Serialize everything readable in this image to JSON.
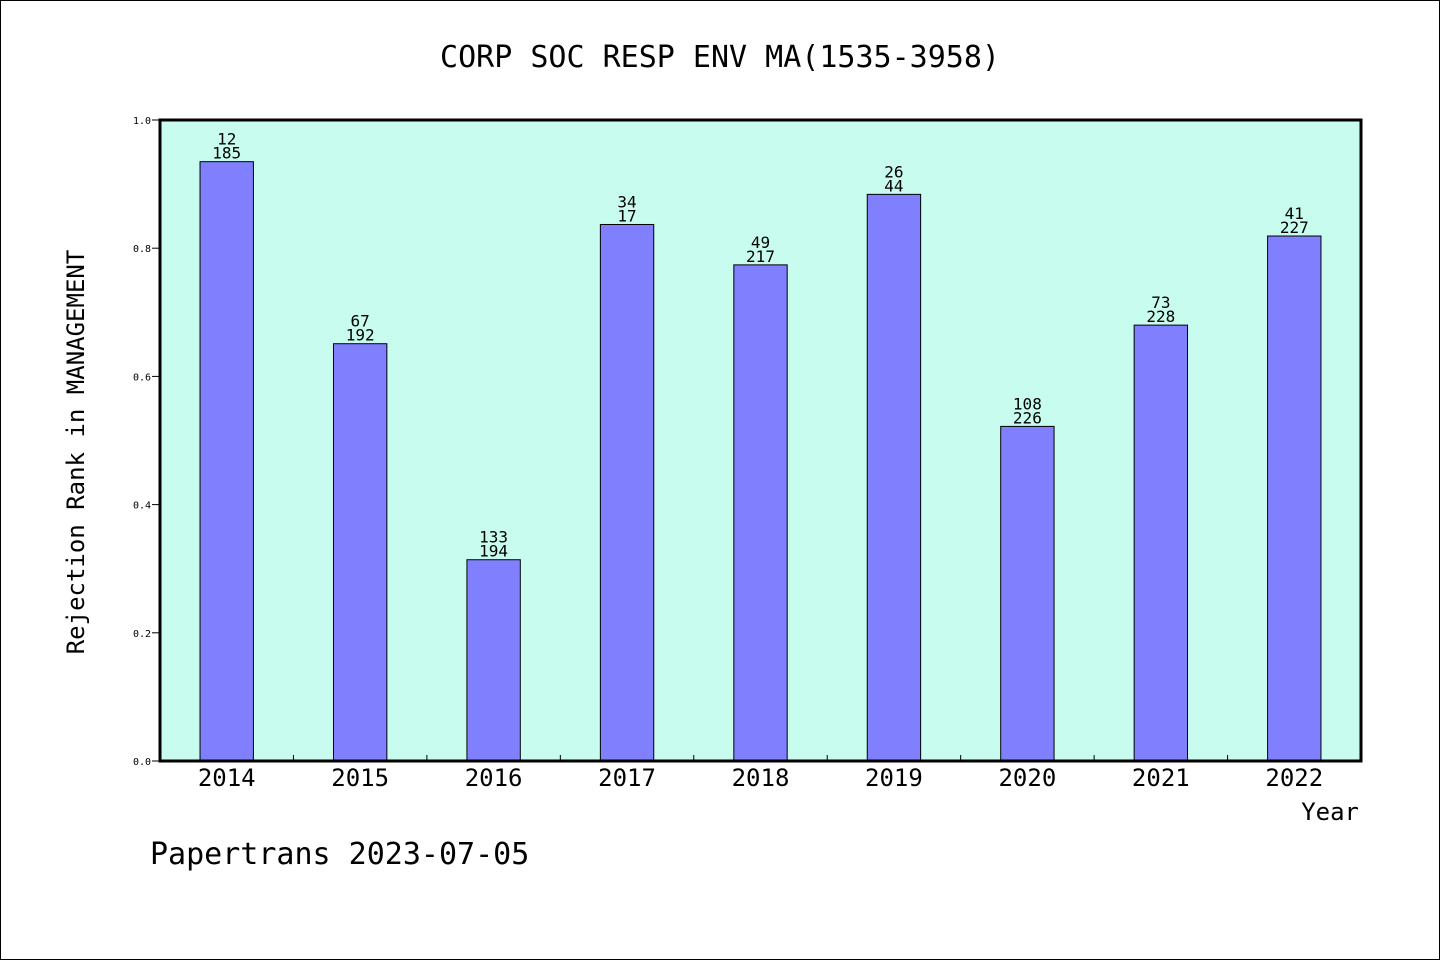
{
  "chart_data": {
    "type": "bar",
    "title": "CORP SOC RESP ENV MA(1535-3958)",
    "xlabel": "Year",
    "ylabel": "Rejection Rank in MANAGEMENT",
    "ylim": [
      0,
      1.0
    ],
    "yticks": [
      "0.0",
      "0.2",
      "0.4",
      "0.6",
      "0.8",
      "1.0"
    ],
    "categories": [
      "2014",
      "2015",
      "2016",
      "2017",
      "2018",
      "2019",
      "2020",
      "2021",
      "2022"
    ],
    "values": [
      0.935,
      0.651,
      0.314,
      0.837,
      0.774,
      0.884,
      0.522,
      0.68,
      0.819
    ],
    "labels_top": [
      "12",
      "67",
      "133",
      "34",
      "49",
      "26",
      "108",
      "73",
      "41"
    ],
    "labels_bottom": [
      "185",
      "192",
      "194",
      "17",
      "217",
      "44",
      "226",
      "228",
      "227"
    ],
    "grid": false,
    "colors": {
      "plot_background": "#c8fcee",
      "bar_fill": "#8080ff",
      "bar_stroke": "#000000"
    }
  },
  "footer": {
    "text": "Papertrans 2023-07-05"
  }
}
